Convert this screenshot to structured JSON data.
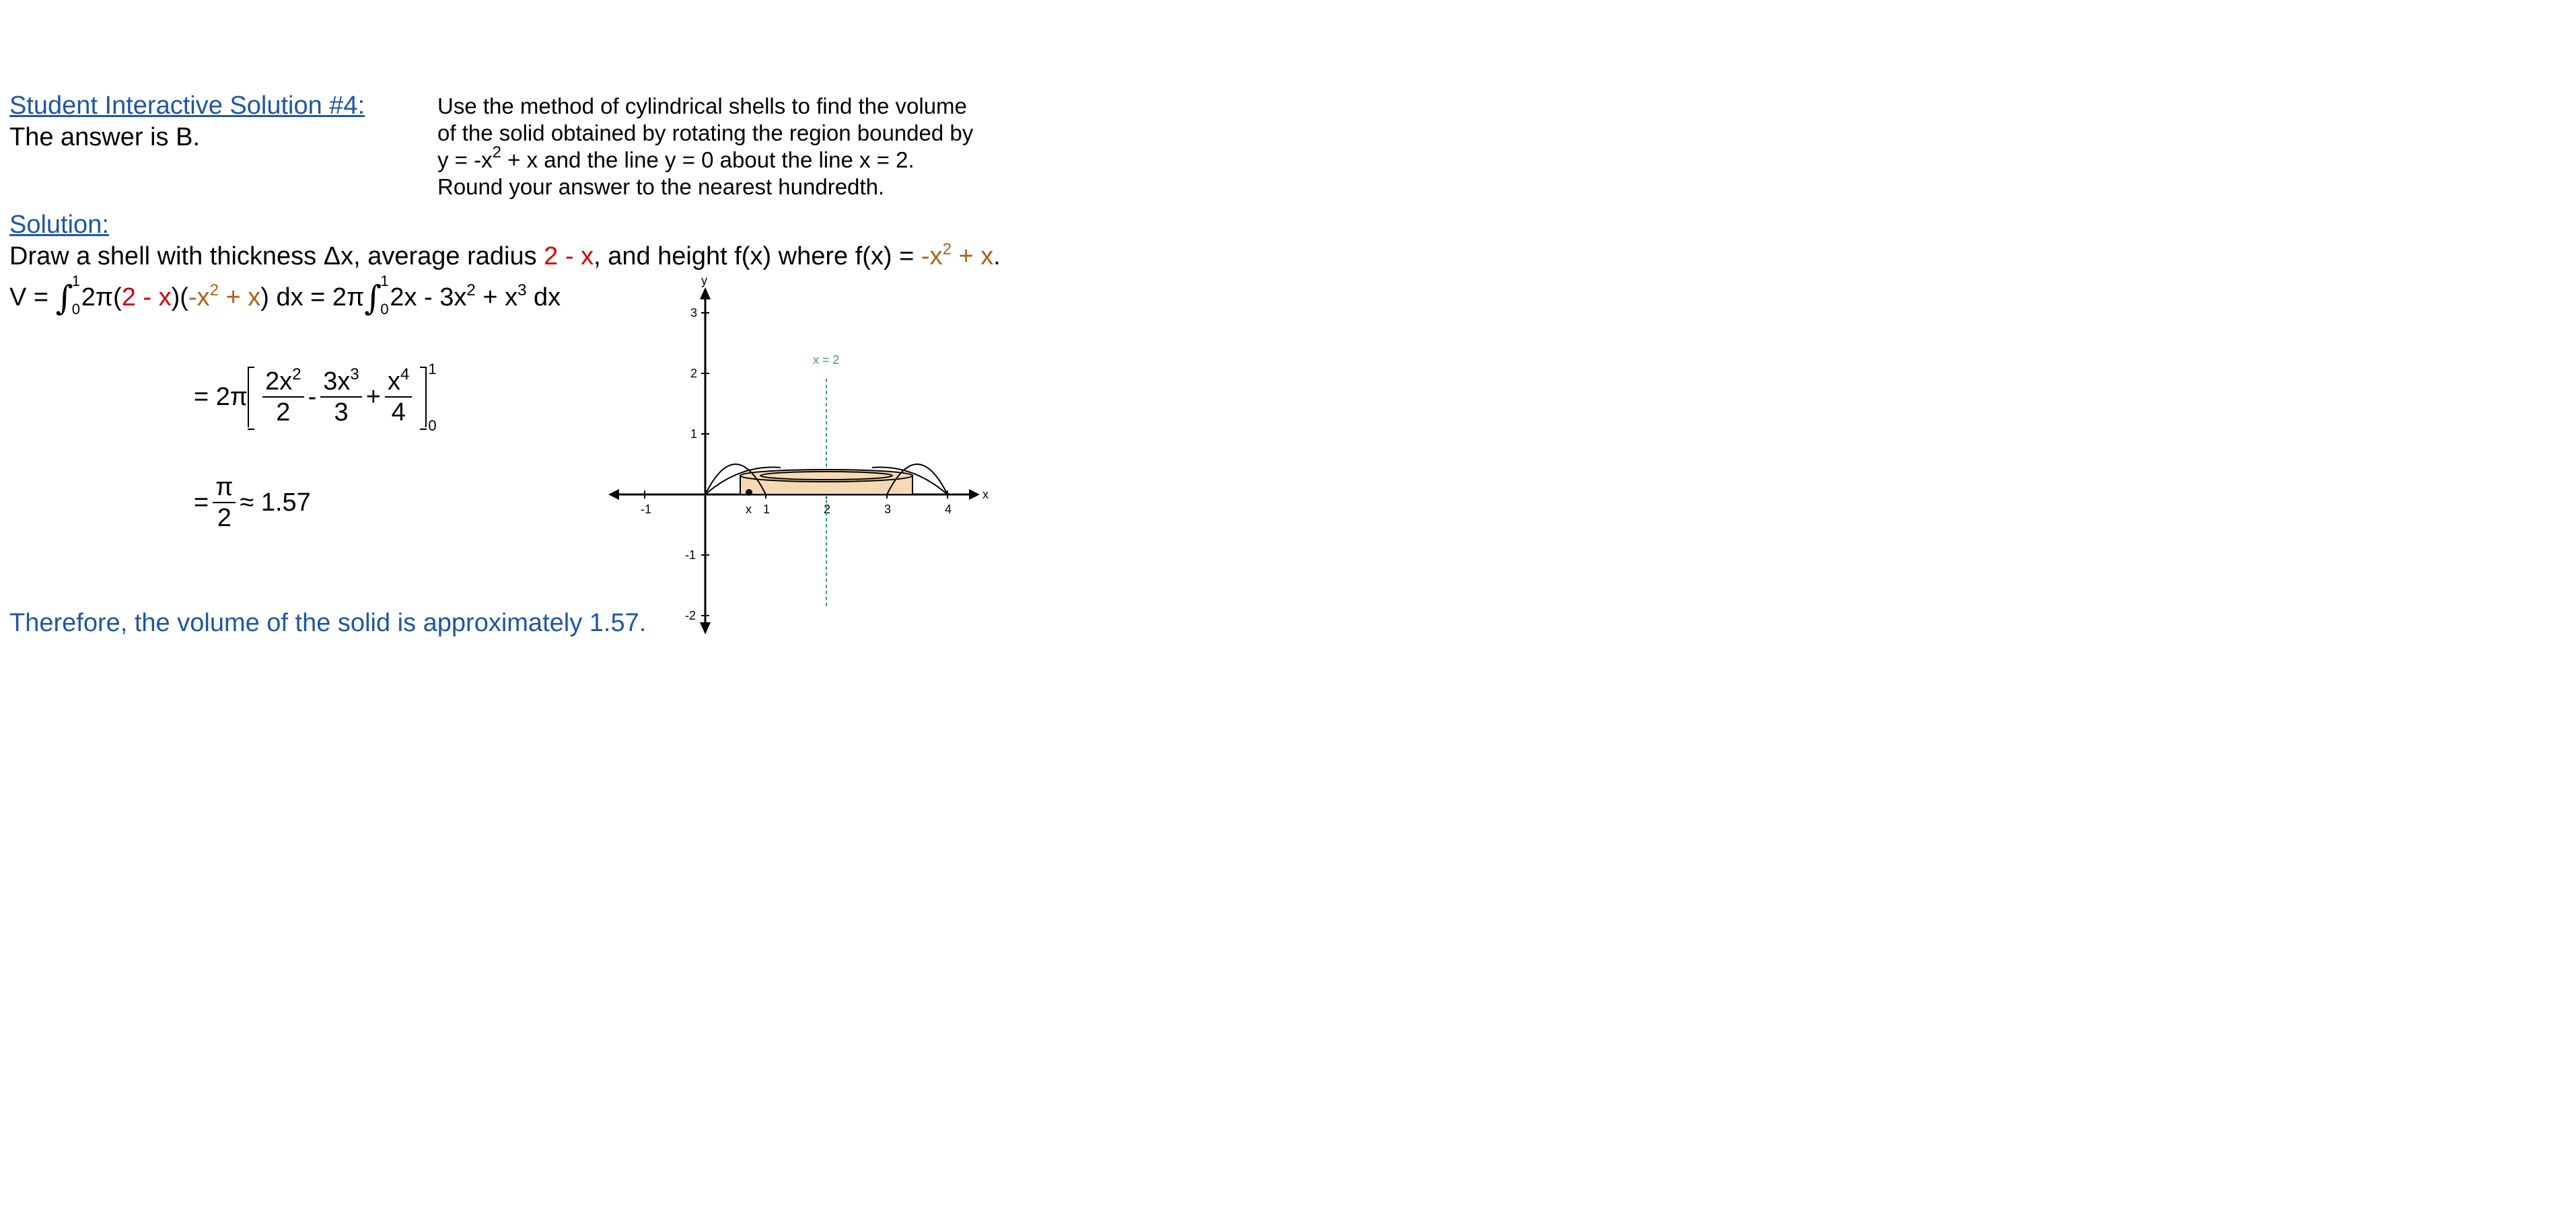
{
  "header": {
    "title": "Student Interactive Solution #4:",
    "answer": "The answer is B."
  },
  "problem": {
    "line1": "Use the method of cylindrical shells to find the volume",
    "line2": "of the solid obtained by rotating the region bounded by",
    "line3_a": "y = -x",
    "line3_exp": "2",
    "line3_b": " + x and the line y = 0 about the line x = 2.",
    "line4": "Round your answer to the nearest hundredth."
  },
  "solution": {
    "label": "Solution:",
    "intro_a": "Draw a shell with thickness Δx, average radius ",
    "intro_radius": "2 - x",
    "intro_b": ", and height f(x) where f(x) = ",
    "intro_height_a": "-x",
    "intro_height_exp": "2",
    "intro_height_b": " + x",
    "intro_end": "."
  },
  "equation1": {
    "v": "V = ",
    "upper": "1",
    "lower": "0",
    "two_pi_open": "2π(",
    "radius": "2 - x",
    "mid": ")(",
    "height_a": "-x",
    "height_exp": "2",
    "height_b": " + x",
    "close_dx": ") dx = 2π",
    "upper2": "1",
    "lower2": "0",
    "integrand_a": "2x - 3x",
    "integrand_exp1": "2",
    "integrand_b": " + x",
    "integrand_exp2": "3",
    "integrand_c": " dx"
  },
  "equation2": {
    "prefix": "= 2π",
    "t1_num": "2x",
    "t1_exp": "2",
    "t1_den": "2",
    "op1": "-",
    "t2_num": "3x",
    "t2_exp": "3",
    "t2_den": "3",
    "op2": "+",
    "t3_num": "x",
    "t3_exp": "4",
    "t3_den": "4",
    "upper": "1",
    "lower": "0"
  },
  "equation3": {
    "prefix": "=",
    "num": "π",
    "den": "2",
    "approx": "≈ 1.57"
  },
  "conclusion": "Therefore, the volume of the solid is approximately 1.57.",
  "graph": {
    "x_axis_label": "x",
    "y_axis_label": "y",
    "x_ticks": [
      "-1",
      "1",
      "2",
      "3",
      "4"
    ],
    "y_ticks": [
      "3",
      "2",
      "1",
      "-1",
      "-2"
    ],
    "shell_x_label": "x",
    "axis_line_label": "x = 2",
    "colors": {
      "shell_fill": "#f6d9b4",
      "axis_of_rotation": "#3a9a8c",
      "axes": "#000000"
    }
  }
}
